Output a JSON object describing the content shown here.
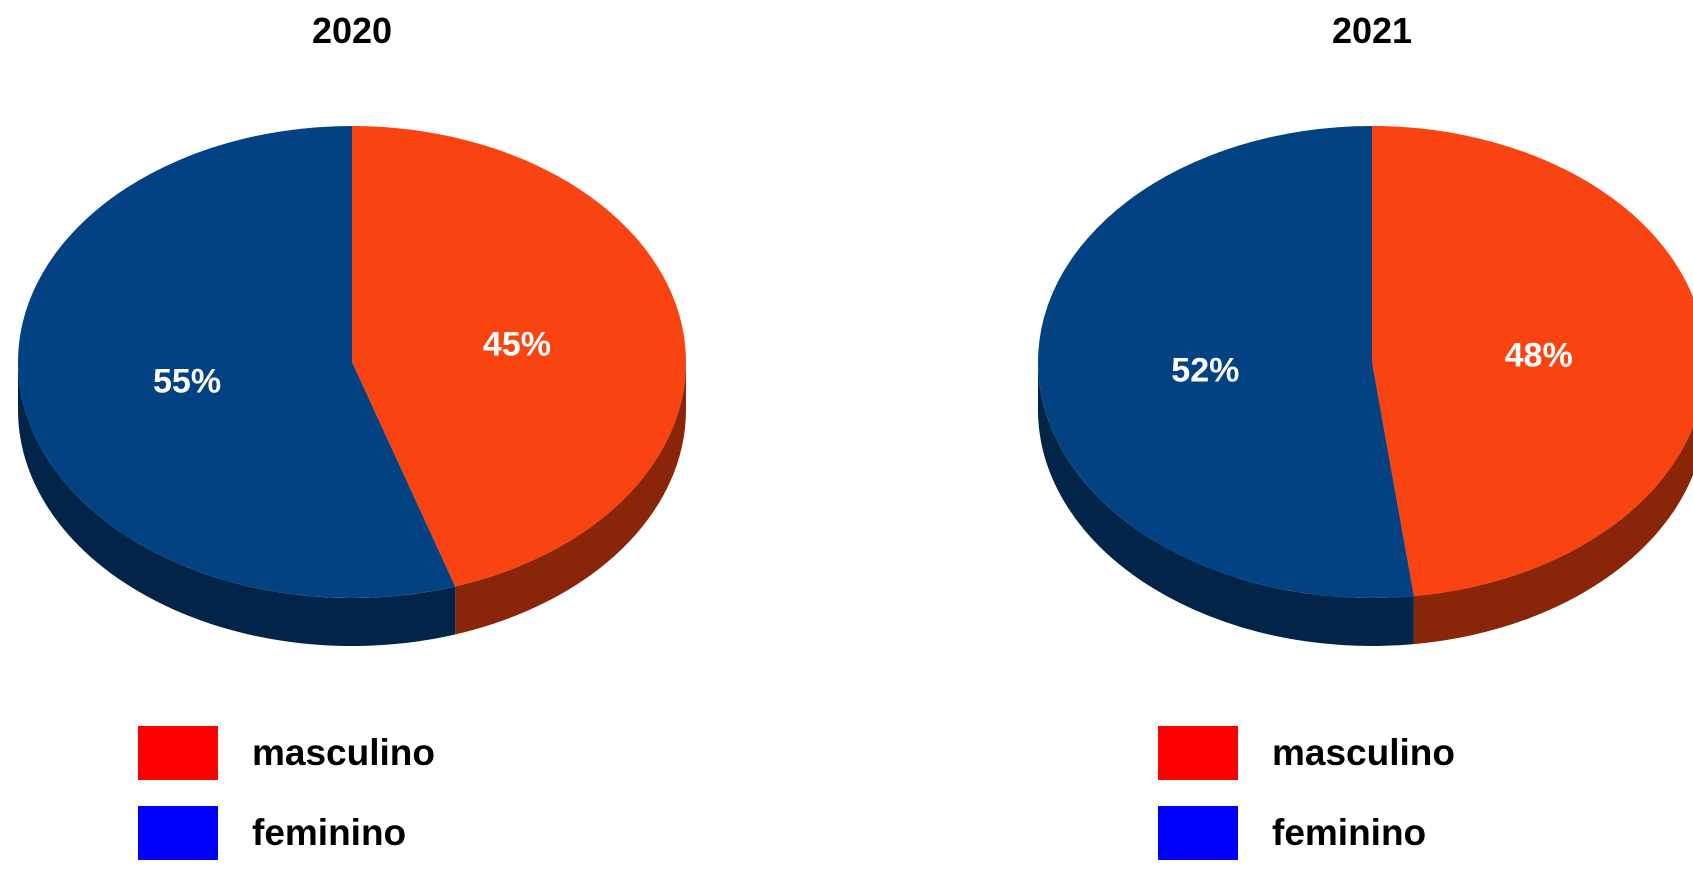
{
  "colors": {
    "masculino_slice": "#F94411",
    "feminino_slice": "#024283",
    "masculino_swatch": "#FF0000",
    "feminino_swatch": "#0000FF"
  },
  "chart_data": [
    {
      "type": "pie",
      "title": "2020",
      "categories": [
        "masculino",
        "feminino"
      ],
      "values": [
        45,
        55
      ],
      "labels": [
        "45%",
        "55%"
      ],
      "legend": [
        "masculino",
        "feminino"
      ],
      "legend_position": "bottom-left"
    },
    {
      "type": "pie",
      "title": "2021",
      "categories": [
        "masculino",
        "feminino"
      ],
      "values": [
        48,
        52
      ],
      "labels": [
        "48%",
        "52%"
      ],
      "legend": [
        "masculino",
        "feminino"
      ],
      "legend_position": "bottom-left"
    }
  ]
}
